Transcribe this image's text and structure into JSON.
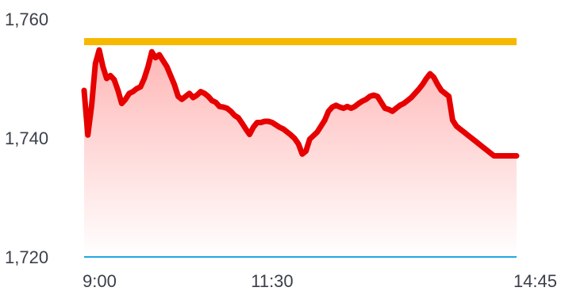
{
  "chart_data": {
    "type": "area",
    "title": "",
    "xlabel": "",
    "ylabel": "",
    "ylim": [
      1720,
      1760
    ],
    "grid": false,
    "legend": "none",
    "y_ticks": [
      "1,760",
      "1,740",
      "1,720"
    ],
    "y_tick_values": [
      1760,
      1740,
      1720
    ],
    "x_ticks": [
      "9:00",
      "11:30",
      "14:45"
    ],
    "x_range": [
      "9:00",
      "14:45"
    ],
    "reference_lines": [
      {
        "value": 1756.2,
        "color": "#f7b800"
      },
      {
        "value": 1720,
        "color": "#22a6e6"
      }
    ],
    "series": [
      {
        "color": "#e60000",
        "fill_top": "#ffb6b6",
        "fill_bottom": "#ffffff",
        "x": [
          "9:00",
          "9:03",
          "9:06",
          "9:09",
          "9:12",
          "9:15",
          "9:18",
          "9:21",
          "9:24",
          "9:27",
          "9:30",
          "9:33",
          "9:36",
          "9:39",
          "9:42",
          "9:45",
          "9:48",
          "9:51",
          "9:54",
          "9:57",
          "10:00",
          "10:03",
          "10:06",
          "10:09",
          "10:12",
          "10:15",
          "10:18",
          "10:21",
          "10:24",
          "10:27",
          "10:30",
          "10:33",
          "10:36",
          "10:39",
          "10:42",
          "10:45",
          "10:48",
          "10:51",
          "10:54",
          "10:57",
          "11:00",
          "11:03",
          "11:06",
          "11:09",
          "11:12",
          "11:15",
          "11:18",
          "11:21",
          "11:24",
          "11:27",
          "11:30",
          "11:33",
          "11:36",
          "11:39",
          "11:42",
          "11:45",
          "11:48",
          "11:51",
          "11:54",
          "11:57",
          "12:00",
          "12:03",
          "12:06",
          "12:09",
          "12:12",
          "12:15",
          "12:18",
          "12:21",
          "12:24",
          "12:27",
          "12:30",
          "12:33",
          "12:36",
          "12:39",
          "12:42",
          "12:45",
          "12:48",
          "12:51",
          "12:54",
          "12:57",
          "13:00",
          "13:03",
          "13:06",
          "13:09",
          "13:12",
          "13:15",
          "13:18",
          "13:21",
          "13:24",
          "13:27",
          "13:30",
          "13:33",
          "13:36",
          "13:39",
          "13:42",
          "13:45",
          "13:48",
          "13:51",
          "13:54",
          "13:57",
          "14:00",
          "14:03",
          "14:06",
          "14:09",
          "14:12",
          "14:15",
          "14:18",
          "14:21",
          "14:24",
          "14:27",
          "14:30",
          "14:33",
          "14:36",
          "14:39",
          "14:42",
          "14:45"
        ],
        "values": [
          1748.0,
          1740.5,
          1745.5,
          1752.5,
          1754.8,
          1752.0,
          1750.0,
          1750.5,
          1749.8,
          1748.0,
          1745.8,
          1746.5,
          1747.5,
          1747.8,
          1748.3,
          1748.6,
          1750.0,
          1752.0,
          1754.5,
          1753.5,
          1754.0,
          1753.0,
          1752.0,
          1750.5,
          1749.0,
          1747.0,
          1746.5,
          1747.0,
          1747.5,
          1746.8,
          1747.2,
          1747.8,
          1747.5,
          1747.0,
          1746.3,
          1746.0,
          1745.3,
          1745.2,
          1745.0,
          1744.5,
          1743.8,
          1743.4,
          1742.5,
          1741.5,
          1740.6,
          1741.8,
          1742.6,
          1742.6,
          1742.8,
          1742.8,
          1742.6,
          1742.2,
          1741.8,
          1741.5,
          1741.0,
          1740.5,
          1739.9,
          1739.0,
          1737.3,
          1737.8,
          1739.8,
          1740.4,
          1741.0,
          1742.0,
          1743.0,
          1744.5,
          1745.2,
          1745.5,
          1745.2,
          1745.0,
          1745.3,
          1745.0,
          1745.3,
          1745.8,
          1746.2,
          1746.5,
          1747.0,
          1747.2,
          1747.0,
          1746.0,
          1745.0,
          1744.8,
          1744.5,
          1745.0,
          1745.5,
          1745.8,
          1746.3,
          1746.8,
          1747.5,
          1748.2,
          1749.0,
          1750.0,
          1750.8,
          1750.2,
          1749.0,
          1748.0,
          1747.5,
          1747.0,
          1743.0,
          1742.0,
          1741.5,
          1741.0,
          1740.5,
          1740.0,
          1739.5,
          1739.0,
          1738.5,
          1738.0,
          1737.5,
          1737.0,
          1737.0,
          1737.0,
          1737.0,
          1737.0,
          1737.0,
          1737.0
        ]
      }
    ]
  }
}
